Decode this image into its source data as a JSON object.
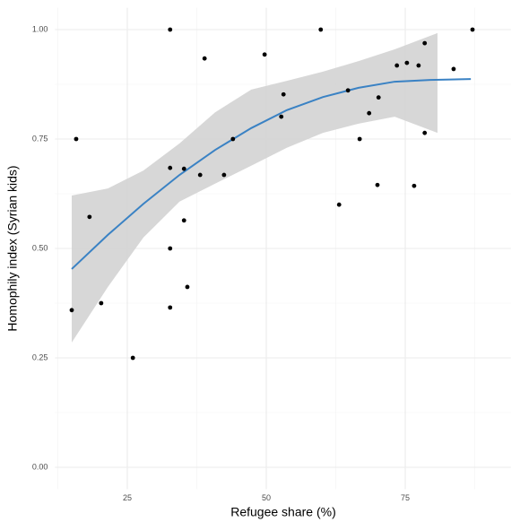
{
  "chart_data": {
    "type": "scatter",
    "x_label": "Refugee share (%)",
    "y_label": "Homophily index (Syrian kids)",
    "xlim": [
      12,
      94
    ],
    "ylim": [
      -0.05,
      1.05
    ],
    "xticks": [
      25,
      50,
      75
    ],
    "yticks": [
      {
        "value": 0,
        "label": "0.00"
      },
      {
        "value": 0.25,
        "label": "0.25"
      },
      {
        "value": 0.5,
        "label": "0.50"
      },
      {
        "value": 0.75,
        "label": "0.75"
      },
      {
        "value": 1,
        "label": "1.00"
      }
    ],
    "x_minor_grid": [
      12.5,
      37.5,
      62.5,
      87.5
    ],
    "y_minor_grid": [
      0.125,
      0.375,
      0.625,
      0.875
    ],
    "grid": true,
    "color": "#000000",
    "x": [
      15.0,
      15.8,
      18.2,
      20.3,
      26.0,
      32.7,
      32.7,
      32.7,
      32.7,
      35.2,
      35.2,
      35.8,
      38.1,
      38.9,
      42.4,
      44.0,
      49.7,
      52.7,
      53.1,
      59.8,
      63.1,
      64.7,
      66.8,
      68.5,
      70.0,
      70.2,
      73.5,
      75.3,
      76.6,
      77.4,
      78.5,
      78.5,
      83.7,
      87.1
    ],
    "values": [
      0.359,
      0.75,
      0.572,
      0.375,
      0.25,
      1.0,
      0.684,
      0.5,
      0.365,
      0.682,
      0.564,
      0.412,
      0.668,
      0.934,
      0.668,
      0.75,
      0.943,
      0.801,
      0.852,
      1.0,
      0.6,
      0.861,
      0.75,
      0.809,
      0.645,
      0.845,
      0.918,
      0.924,
      0.643,
      0.918,
      0.969,
      0.764,
      0.91,
      1.0
    ],
    "fit": {
      "color": "#3a82c4",
      "x": [
        15.0,
        21.5,
        27.9,
        34.4,
        40.8,
        47.3,
        53.7,
        60.2,
        66.6,
        73.1,
        79.5,
        86.8
      ],
      "values": [
        0.453,
        0.531,
        0.602,
        0.668,
        0.725,
        0.775,
        0.816,
        0.846,
        0.867,
        0.881,
        0.885,
        0.887
      ]
    },
    "band": {
      "color": "#d3d3d3",
      "x": [
        15.0,
        21.5,
        27.9,
        34.4,
        40.8,
        47.3,
        53.7,
        60.2,
        66.6,
        73.1,
        80.8
      ],
      "upper": [
        0.621,
        0.637,
        0.678,
        0.74,
        0.811,
        0.863,
        0.883,
        0.904,
        0.928,
        0.955,
        0.992
      ],
      "lower": [
        0.285,
        0.412,
        0.525,
        0.607,
        0.648,
        0.689,
        0.73,
        0.764,
        0.785,
        0.801,
        0.764
      ]
    }
  }
}
